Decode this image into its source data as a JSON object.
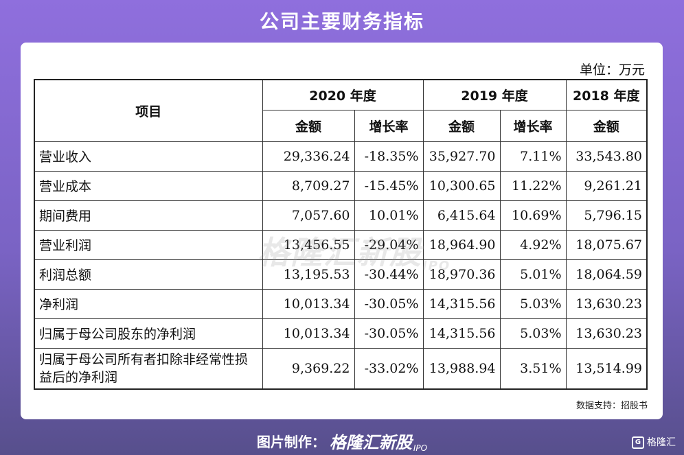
{
  "title": "公司主要财务指标",
  "unit": "单位：万元",
  "table": {
    "item_header": "项目",
    "years": [
      "2020 年度",
      "2019 年度",
      "2018 年度"
    ],
    "sub": {
      "amount": "金额",
      "growth": "增长率"
    },
    "rows": [
      {
        "label": "营业收入",
        "a2020": "29,336.24",
        "g2020": "-18.35%",
        "a2019": "35,927.70",
        "g2019": "7.11%",
        "a2018": "33,543.80"
      },
      {
        "label": "营业成本",
        "a2020": "8,709.27",
        "g2020": "-15.45%",
        "a2019": "10,300.65",
        "g2019": "11.22%",
        "a2018": "9,261.21"
      },
      {
        "label": "期间费用",
        "a2020": "7,057.60",
        "g2020": "10.01%",
        "a2019": "6,415.64",
        "g2019": "10.69%",
        "a2018": "5,796.15"
      },
      {
        "label": "营业利润",
        "a2020": "13,456.55",
        "g2020": "-29.04%",
        "a2019": "18,964.90",
        "g2019": "4.92%",
        "a2018": "18,075.67"
      },
      {
        "label": "利润总额",
        "a2020": "13,195.53",
        "g2020": "-30.44%",
        "a2019": "18,970.36",
        "g2019": "5.01%",
        "a2018": "18,064.59"
      },
      {
        "label": "净利润",
        "a2020": "10,013.34",
        "g2020": "-30.05%",
        "a2019": "14,315.56",
        "g2019": "5.03%",
        "a2018": "13,630.23"
      },
      {
        "label": "归属于母公司股东的净利润",
        "a2020": "10,013.34",
        "g2020": "-30.05%",
        "a2019": "14,315.56",
        "g2019": "5.03%",
        "a2018": "13,630.23"
      },
      {
        "label": "归属于母公司所有者扣除非经常性损益后的净利润",
        "a2020": "9,369.22",
        "g2020": "-33.02%",
        "a2019": "13,988.94",
        "g2019": "3.51%",
        "a2018": "13,514.99"
      }
    ]
  },
  "watermark": {
    "text": "格隆汇新股",
    "sub": "IPO"
  },
  "source": "数据支持：招股书",
  "credit": {
    "label": "图片制作：",
    "brand": "格隆汇新股",
    "ipo": "IPO"
  },
  "corner_logo": {
    "icon": "G",
    "text": "格隆汇"
  },
  "colors": {
    "bg_top": "#8f6fdd",
    "bg_bottom": "#574f8c",
    "card": "#ffffff"
  }
}
